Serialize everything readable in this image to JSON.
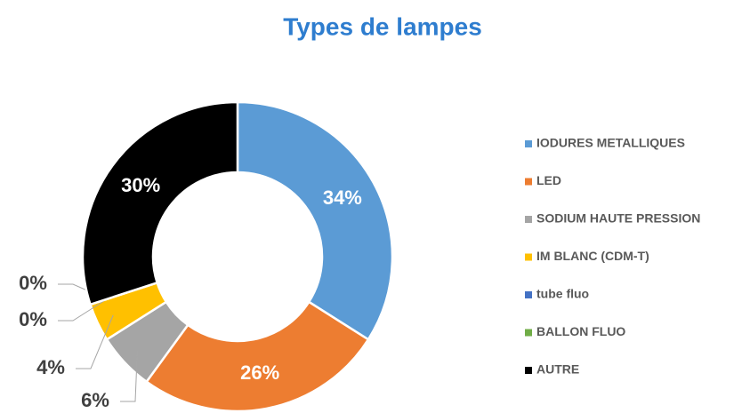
{
  "chart_data": {
    "type": "donut",
    "title": "Types de lampes",
    "categories": [
      "IODURES METALLIQUES",
      "LED",
      "SODIUM HAUTE PRESSION",
      "IM BLANC (CDM-T)",
      "tube fluo",
      "BALLON FLUO",
      "AUTRE"
    ],
    "values": [
      34,
      26,
      6,
      4,
      0,
      0,
      30
    ],
    "value_labels": [
      "34%",
      "26%",
      "6%",
      "4%",
      "0%",
      "0%",
      "30%"
    ],
    "colors": [
      "#5b9bd5",
      "#ed7d31",
      "#a5a5a5",
      "#ffc000",
      "#4472c4",
      "#70ad47",
      "#000000"
    ],
    "legend": "right"
  }
}
